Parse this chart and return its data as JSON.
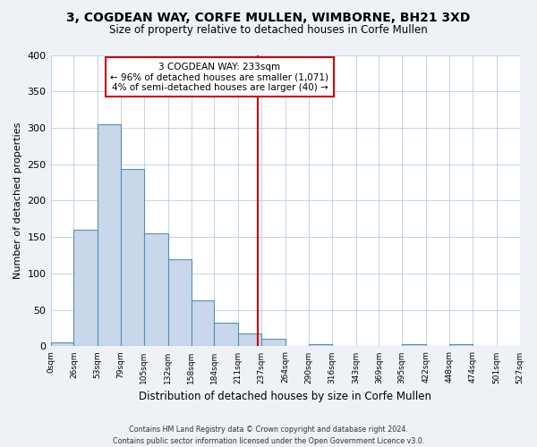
{
  "title": "3, COGDEAN WAY, CORFE MULLEN, WIMBORNE, BH21 3XD",
  "subtitle": "Size of property relative to detached houses in Corfe Mullen",
  "xlabel": "Distribution of detached houses by size in Corfe Mullen",
  "ylabel": "Number of detached properties",
  "bin_edges": [
    0,
    26,
    53,
    79,
    105,
    132,
    158,
    184,
    211,
    237,
    264,
    290,
    316,
    343,
    369,
    395,
    422,
    448,
    474,
    501,
    527
  ],
  "bar_heights": [
    5,
    160,
    305,
    243,
    155,
    120,
    63,
    33,
    18,
    10,
    0,
    3,
    0,
    0,
    0,
    3,
    0,
    3,
    0,
    0
  ],
  "bar_face_color": "#c8d8ea",
  "bar_edge_color": "#5090b8",
  "vline_x": 233,
  "vline_color": "#cc0000",
  "annotation_title": "3 COGDEAN WAY: 233sqm",
  "annotation_line1": "← 96% of detached houses are smaller (1,071)",
  "annotation_line2": "4% of semi-detached houses are larger (40) →",
  "annotation_box_edgecolor": "#cc0000",
  "ylim": [
    0,
    400
  ],
  "yticks": [
    0,
    50,
    100,
    150,
    200,
    250,
    300,
    350,
    400
  ],
  "tick_labels": [
    "0sqm",
    "26sqm",
    "53sqm",
    "79sqm",
    "105sqm",
    "132sqm",
    "158sqm",
    "184sqm",
    "211sqm",
    "237sqm",
    "264sqm",
    "290sqm",
    "316sqm",
    "343sqm",
    "369sqm",
    "395sqm",
    "422sqm",
    "448sqm",
    "474sqm",
    "501sqm",
    "527sqm"
  ],
  "footer_line1": "Contains HM Land Registry data © Crown copyright and database right 2024.",
  "footer_line2": "Contains public sector information licensed under the Open Government Licence v3.0.",
  "bg_color": "#eef2f7",
  "plot_bg_color": "#ffffff",
  "title_fontsize": 10,
  "subtitle_fontsize": 8.5
}
